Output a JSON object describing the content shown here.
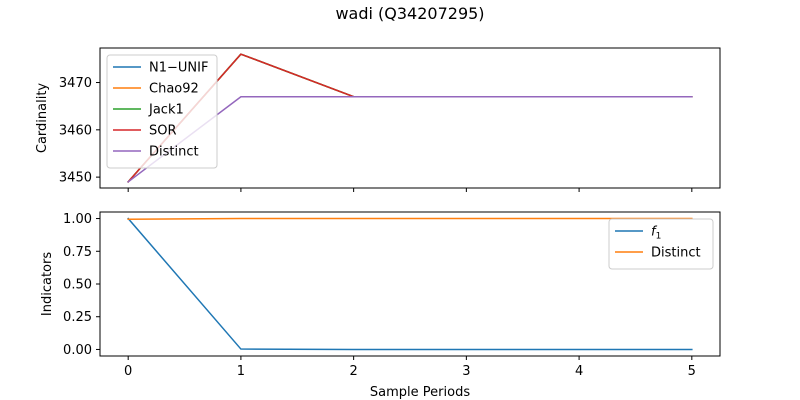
{
  "title": "wadi (Q34207295)",
  "chart_data": [
    {
      "type": "line",
      "ylabel": "Cardinality",
      "xlabel": "",
      "x": [
        0,
        1,
        2,
        3,
        4,
        5
      ],
      "ylim": [
        3447.7,
        3477.3
      ],
      "xlim": [
        -0.25,
        5.25
      ],
      "yticks": [
        3450,
        3460,
        3470
      ],
      "xticks": [
        0,
        1,
        2,
        3,
        4,
        5
      ],
      "show_xticklabels": false,
      "legend_loc": "upper-left",
      "series": [
        {
          "name": "N1−UNIF",
          "color": "#1f77b4",
          "values": [
            3449,
            3476,
            3467,
            3467,
            3467,
            3467
          ]
        },
        {
          "name": "Chao92",
          "color": "#ff7f0e",
          "values": [
            3449,
            3476,
            3467,
            3467,
            3467,
            3467
          ]
        },
        {
          "name": "Jack1",
          "color": "#2ca02c",
          "values": [
            3449,
            3476,
            3467,
            3467,
            3467,
            3467
          ]
        },
        {
          "name": "SOR",
          "color": "#d62728",
          "values": [
            3449,
            3476,
            3467,
            3467,
            3467,
            3467
          ]
        },
        {
          "name": "Distinct",
          "color": "#9467bd",
          "values": [
            3449,
            3467,
            3467,
            3467,
            3467,
            3467
          ]
        }
      ]
    },
    {
      "type": "line",
      "ylabel": "Indicators",
      "xlabel": "Sample Periods",
      "x": [
        0,
        1,
        2,
        3,
        4,
        5
      ],
      "ylim": [
        -0.05,
        1.05
      ],
      "xlim": [
        -0.25,
        5.25
      ],
      "yticks": [
        0.0,
        0.25,
        0.5,
        0.75,
        1.0
      ],
      "xticks": [
        0,
        1,
        2,
        3,
        4,
        5
      ],
      "show_xticklabels": true,
      "legend_loc": "upper-right",
      "series": [
        {
          "name": "f",
          "subscript": "1",
          "italic": true,
          "color": "#1f77b4",
          "values": [
            1.0,
            0.003,
            0.0,
            0.0,
            0.0,
            0.0
          ]
        },
        {
          "name": "Distinct",
          "color": "#ff7f0e",
          "values": [
            0.995,
            1.0,
            1.0,
            1.0,
            1.0,
            1.0
          ]
        }
      ]
    }
  ]
}
